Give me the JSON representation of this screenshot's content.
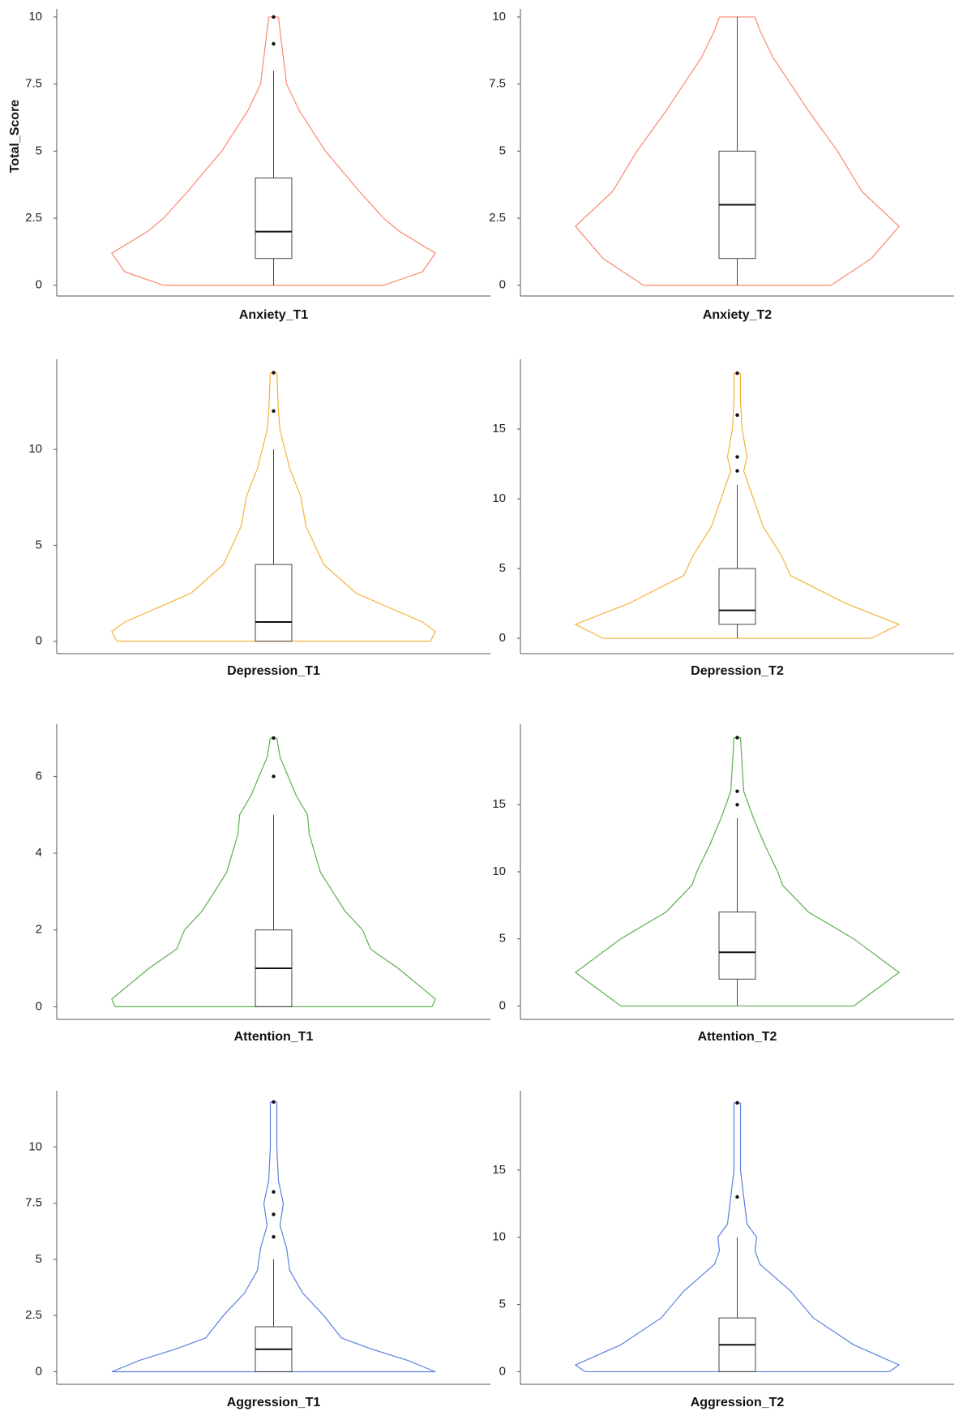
{
  "chart_data": [
    {
      "type": "violin",
      "x_label": "Anxiety_T1",
      "y_label": "Total_Score",
      "color": "#f7896f",
      "ylim": [
        -0.4,
        10.3
      ],
      "yticks": [
        0,
        2.5,
        5,
        7.5,
        10
      ],
      "box": {
        "whisker_low": 0,
        "q1": 1,
        "median": 2,
        "q3": 4,
        "whisker_high": 8
      },
      "outliers": [
        9,
        10
      ],
      "violin": {
        "y": [
          0,
          0.5,
          1.2,
          2,
          2.5,
          3.5,
          5,
          6.5,
          7.5,
          8.5,
          9.5,
          10
        ],
        "density": [
          0.68,
          0.92,
          1,
          0.78,
          0.68,
          0.53,
          0.32,
          0.16,
          0.08,
          0.06,
          0.04,
          0.03
        ]
      }
    },
    {
      "type": "violin",
      "x_label": "Anxiety_T2",
      "color": "#f7896f",
      "ylim": [
        -0.4,
        10.3
      ],
      "yticks": [
        0,
        2.5,
        5,
        7.5,
        10
      ],
      "box": {
        "whisker_low": 0,
        "q1": 1,
        "median": 3,
        "q3": 5,
        "whisker_high": 10
      },
      "outliers": [],
      "violin": {
        "y": [
          0,
          1,
          2.2,
          3.5,
          5,
          6.5,
          7.5,
          8.5,
          9.5,
          10
        ],
        "density": [
          0.58,
          0.83,
          1,
          0.77,
          0.62,
          0.44,
          0.33,
          0.22,
          0.14,
          0.11
        ]
      }
    },
    {
      "type": "violin",
      "x_label": "Depression_T1",
      "color": "#f5b23a",
      "ylim": [
        -0.65,
        14.7
      ],
      "yticks": [
        0,
        5,
        10
      ],
      "box": {
        "whisker_low": 0,
        "q1": 0,
        "median": 1,
        "q3": 4,
        "whisker_high": 10
      },
      "outliers": [
        12,
        14
      ],
      "violin": {
        "y": [
          0,
          0.5,
          1,
          2.5,
          4,
          6,
          7.5,
          9,
          11,
          12,
          14
        ],
        "density": [
          0.97,
          1,
          0.92,
          0.51,
          0.31,
          0.2,
          0.17,
          0.1,
          0.04,
          0.03,
          0.02
        ]
      }
    },
    {
      "type": "violin",
      "x_label": "Depression_T2",
      "color": "#f5b23a",
      "ylim": [
        -1.1,
        20
      ],
      "yticks": [
        0,
        5,
        10,
        15
      ],
      "box": {
        "whisker_low": 0,
        "q1": 1,
        "median": 2,
        "q3": 5,
        "whisker_high": 11
      },
      "outliers": [
        12,
        13,
        16,
        19
      ],
      "violin": {
        "y": [
          0,
          1,
          2.5,
          4.5,
          6,
          8,
          10,
          12,
          13,
          15,
          17,
          19
        ],
        "density": [
          0.83,
          1,
          0.67,
          0.33,
          0.27,
          0.16,
          0.1,
          0.04,
          0.06,
          0.03,
          0.02,
          0.02
        ]
      }
    },
    {
      "type": "violin",
      "x_label": "Attention_T1",
      "color": "#5cb04f",
      "ylim": [
        -0.33,
        7.36
      ],
      "yticks": [
        0,
        2,
        4,
        6
      ],
      "box": {
        "whisker_low": 0,
        "q1": 0,
        "median": 1,
        "q3": 2,
        "whisker_high": 5
      },
      "outliers": [
        6,
        7
      ],
      "violin": {
        "y": [
          0,
          0.2,
          1,
          1.5,
          2,
          2.5,
          3.5,
          4.5,
          5,
          5.5,
          6.5,
          7
        ],
        "density": [
          0.98,
          1,
          0.77,
          0.6,
          0.55,
          0.44,
          0.29,
          0.22,
          0.21,
          0.14,
          0.04,
          0.02
        ]
      }
    },
    {
      "type": "violin",
      "x_label": "Attention_T2",
      "color": "#5cb04f",
      "ylim": [
        -1,
        21
      ],
      "yticks": [
        0,
        5,
        10,
        15
      ],
      "box": {
        "whisker_low": 0,
        "q1": 2,
        "median": 4,
        "q3": 7,
        "whisker_high": 14
      },
      "outliers": [
        15,
        16,
        20
      ],
      "violin": {
        "y": [
          0,
          2.5,
          5,
          7,
          9,
          10,
          12,
          14,
          16,
          18,
          20
        ],
        "density": [
          0.72,
          1,
          0.72,
          0.44,
          0.28,
          0.25,
          0.17,
          0.1,
          0.04,
          0.03,
          0.02
        ]
      }
    },
    {
      "type": "violin",
      "x_label": "Aggression_T1",
      "color": "#5b80e0",
      "ylim": [
        -0.56,
        12.5
      ],
      "yticks": [
        0,
        2.5,
        5,
        7.5,
        10
      ],
      "box": {
        "whisker_low": 0,
        "q1": 0,
        "median": 1,
        "q3": 2,
        "whisker_high": 5
      },
      "outliers": [
        6,
        7,
        8,
        12
      ],
      "violin": {
        "y": [
          0,
          0.5,
          1,
          1.5,
          2.5,
          3.5,
          4.5,
          5.5,
          6.5,
          7.5,
          8.5,
          10,
          12
        ],
        "density": [
          1,
          0.83,
          0.61,
          0.42,
          0.31,
          0.18,
          0.1,
          0.08,
          0.04,
          0.06,
          0.03,
          0.02,
          0.02
        ]
      }
    },
    {
      "type": "violin",
      "x_label": "Aggression_T2",
      "color": "#5b80e0",
      "ylim": [
        -0.94,
        20.9
      ],
      "yticks": [
        0,
        5,
        10,
        15
      ],
      "box": {
        "whisker_low": 0,
        "q1": 0,
        "median": 2,
        "q3": 4,
        "whisker_high": 10
      },
      "outliers": [
        13,
        20
      ],
      "violin": {
        "y": [
          0,
          0.5,
          2,
          4,
          6,
          8,
          9,
          10,
          11,
          13,
          15,
          18,
          20
        ],
        "density": [
          0.94,
          1,
          0.72,
          0.47,
          0.33,
          0.14,
          0.11,
          0.12,
          0.06,
          0.04,
          0.02,
          0.02,
          0.02
        ]
      }
    }
  ]
}
